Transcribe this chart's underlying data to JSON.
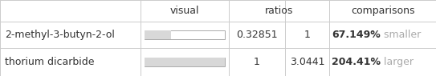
{
  "rows": [
    {
      "name": "2-methyl-3-butyn-2-ol",
      "ratio": "0.32851",
      "ratio2": "1",
      "comparison_pct": "67.149%",
      "comparison_word": " smaller",
      "comparison_color": "#aaaaaa",
      "bar_fill": 0.32851,
      "bar_color": "#d8d8d8",
      "bar_border": "#aaaaaa"
    },
    {
      "name": "thorium dicarbide",
      "ratio": "1",
      "ratio2": "3.0441",
      "comparison_pct": "204.41%",
      "comparison_word": " larger",
      "comparison_color": "#aaaaaa",
      "bar_fill": 1.0,
      "bar_color": "#d8d8d8",
      "bar_border": "#aaaaaa"
    }
  ],
  "bg_color": "#ffffff",
  "grid_color": "#cccccc",
  "text_color": "#333333",
  "font_size": 9
}
